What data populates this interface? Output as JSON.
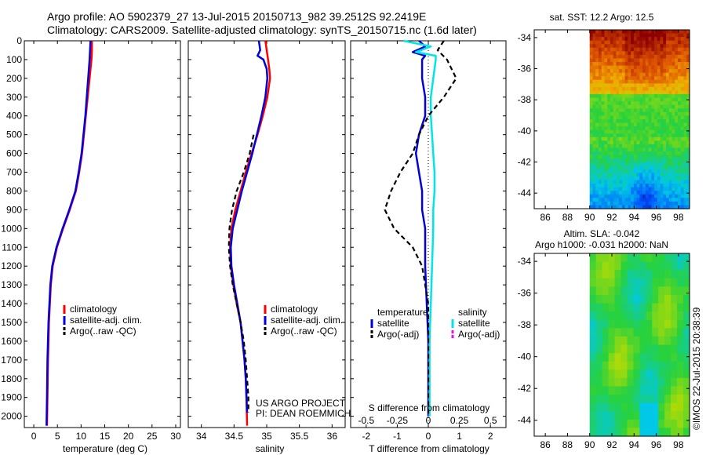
{
  "header": {
    "line1": "Argo profile: AO 5902379_27 13-Jul-2015 20150713_982 39.2512S 92.2419E",
    "line2": "Climatology: CARS2009. Satellite-adjusted climatology: synTS_20150715.nc (1.6d later)"
  },
  "colors": {
    "climatology": "#ff0000",
    "satellite": "#0000dd",
    "argo": "#000000",
    "sal_satellite": "#00e5e5",
    "sal_argo": "#ff00ff"
  },
  "depth_ticks": [
    0,
    100,
    200,
    300,
    400,
    500,
    600,
    700,
    800,
    900,
    1000,
    1100,
    1200,
    1300,
    1400,
    1500,
    1600,
    1700,
    1800,
    1900,
    2000
  ],
  "chart_data": [
    {
      "type": "line",
      "id": "temperature",
      "xlabel": "temperature (deg C)",
      "xlim": [
        -2,
        31
      ],
      "ylim": [
        2060,
        0
      ],
      "xticks": [
        0,
        5,
        10,
        15,
        20,
        25,
        30
      ],
      "legend": [
        "climatology",
        "satellite-adj. clim.",
        "Argo(..raw -QC)"
      ],
      "series": [
        {
          "name": "climatology",
          "depth": [
            0,
            50,
            100,
            200,
            300,
            400,
            500,
            600,
            700,
            800,
            900,
            1000,
            1100,
            1200,
            1300,
            1500,
            1700,
            1900,
            2050
          ],
          "values": [
            12.3,
            12.3,
            12.2,
            11.8,
            11.4,
            11.0,
            10.6,
            10.2,
            9.6,
            8.9,
            7.6,
            6.2,
            4.9,
            4.0,
            3.6,
            3.2,
            3.0,
            2.9,
            2.8
          ]
        },
        {
          "name": "satellite-adj. clim.",
          "depth": [
            0,
            50,
            100,
            200,
            300,
            400,
            500,
            600,
            700,
            800,
            900,
            1000,
            1100,
            1200,
            1300,
            1500,
            1700,
            1900,
            2050
          ],
          "values": [
            12.0,
            11.9,
            11.8,
            11.5,
            11.2,
            10.9,
            10.5,
            10.1,
            9.5,
            8.8,
            7.5,
            6.1,
            4.8,
            3.9,
            3.5,
            3.1,
            2.9,
            2.8,
            2.7
          ]
        }
      ]
    },
    {
      "type": "line",
      "id": "salinity",
      "xlabel": "salinity",
      "xlim": [
        33.8,
        36.2
      ],
      "ylim": [
        2060,
        0
      ],
      "xticks": [
        34,
        34.5,
        35,
        35.5,
        36
      ],
      "legend": [
        "climatology",
        "satellite-adj. clim.",
        "Argo(..raw -QC)"
      ],
      "annotation": [
        "US ARGO PROJECT",
        "PI: DEAN ROEMMICH"
      ],
      "series": [
        {
          "name": "climatology",
          "depth": [
            0,
            50,
            100,
            150,
            200,
            300,
            400,
            500,
            600,
            700,
            800,
            900,
            1000,
            1100,
            1200,
            1300,
            1400,
            1500,
            1600,
            1700,
            1800,
            1900,
            2050
          ],
          "values": [
            34.98,
            35.0,
            35.02,
            35.04,
            35.05,
            35.01,
            34.94,
            34.86,
            34.77,
            34.68,
            34.6,
            34.52,
            34.46,
            34.44,
            34.45,
            34.49,
            34.54,
            34.6,
            34.63,
            34.66,
            34.68,
            34.69,
            34.7
          ]
        },
        {
          "name": "satellite-adj. clim.",
          "depth": [
            0,
            50,
            80,
            100,
            150,
            200,
            300,
            400,
            500,
            600,
            700,
            800,
            900,
            1000,
            1100,
            1200,
            1300,
            1400,
            1500,
            1600,
            1700,
            1800,
            1900,
            1980
          ],
          "values": [
            34.88,
            34.9,
            34.86,
            34.95,
            35.0,
            35.01,
            34.98,
            34.92,
            34.85,
            34.78,
            34.7,
            34.62,
            34.55,
            34.48,
            34.45,
            34.46,
            34.5,
            34.55,
            34.6,
            34.63,
            34.66,
            34.68,
            34.69,
            34.7
          ]
        },
        {
          "name": "Argo(..raw -QC)",
          "depth": [
            500,
            600,
            700,
            800,
            900,
            1000,
            1100,
            1200,
            1300,
            1400,
            1500,
            1600,
            1700,
            1800,
            1900,
            1980
          ],
          "values": [
            34.8,
            34.74,
            34.65,
            34.54,
            34.47,
            34.43,
            34.42,
            34.44,
            34.48,
            34.54,
            34.6,
            34.65,
            34.68,
            34.7,
            34.72,
            34.72
          ]
        }
      ]
    },
    {
      "type": "line",
      "id": "difference",
      "xlabel": "T difference from climatology",
      "xlabel_top": "S difference from climatology",
      "xlim": [
        -2.5,
        2.5
      ],
      "ylim": [
        2060,
        0
      ],
      "xticks": [
        -2,
        -1,
        0,
        1,
        2
      ],
      "xticks_labels": [
        "-2",
        "-1",
        "0",
        "1",
        "2"
      ],
      "sticks": [
        -0.5,
        -0.25,
        0,
        0.25,
        0.5
      ],
      "sticks_labels": [
        "-0.5",
        "-0.25",
        "0",
        "0.25",
        "0.5"
      ],
      "legend_titles": [
        "temperature",
        "salinity"
      ],
      "legend": [
        "satellite",
        "Argo(-adj)",
        "satellite",
        "Argo(-adj)"
      ],
      "series": [
        {
          "name": "T satellite",
          "depth": [
            0,
            30,
            60,
            80,
            100,
            200,
            300,
            400,
            500,
            600,
            700,
            800,
            900,
            1000,
            1200,
            1400,
            1600,
            1800,
            2000
          ],
          "values": [
            -0.3,
            -0.1,
            -0.5,
            -0.1,
            -0.2,
            -0.2,
            -0.1,
            -0.1,
            -0.3,
            -0.4,
            -0.3,
            -0.2,
            -0.2,
            -0.1,
            -0.1,
            -0.05,
            0,
            0,
            0
          ]
        },
        {
          "name": "S satellite",
          "depth": [
            0,
            30,
            60,
            80,
            100,
            200,
            300,
            400,
            500,
            600,
            700,
            800,
            900,
            1000,
            1200,
            1400,
            1600,
            1800,
            2000
          ],
          "values": [
            -0.2,
            0.02,
            -0.1,
            0.06,
            0.06,
            0.04,
            0.02,
            0.02,
            0.03,
            0.04,
            0.05,
            0.05,
            0.04,
            0.04,
            0.03,
            0.02,
            0.01,
            0.01,
            0.01
          ]
        },
        {
          "name": "T Argo(-adj)",
          "depth": [
            0,
            50,
            100,
            200,
            300,
            400,
            500,
            600,
            700,
            800,
            900,
            1000,
            1100,
            1200,
            1300,
            1400,
            1500,
            1600,
            1700,
            1800,
            1900,
            2000
          ],
          "values": [
            0.5,
            0.3,
            0.6,
            0.9,
            0.5,
            0.0,
            -0.3,
            -0.5,
            -0.9,
            -1.2,
            -1.4,
            -1.1,
            -0.5,
            -0.2,
            -0.1,
            0,
            0,
            0,
            0,
            0,
            0,
            0
          ]
        }
      ]
    },
    {
      "type": "heatmap",
      "id": "sst",
      "title": "sat. SST: 12.2 Argo: 12.5",
      "xlim": [
        85,
        99
      ],
      "ylim": [
        -45,
        -33.5
      ],
      "xticks": [
        86,
        88,
        90,
        92,
        94,
        96,
        98
      ],
      "yticks": [
        -34,
        -36,
        -38,
        -40,
        -42,
        -44
      ],
      "data_xrange": [
        90,
        99
      ]
    },
    {
      "type": "heatmap",
      "id": "sla",
      "title": "Altim. SLA: -0.042",
      "subtitle": "Argo h1000: -0.031 h2000: NaN",
      "xlim": [
        85,
        99
      ],
      "ylim": [
        -45,
        -33.5
      ],
      "xticks": [
        86,
        88,
        90,
        92,
        94,
        96,
        98
      ],
      "yticks": [
        -34,
        -36,
        -38,
        -40,
        -42,
        -44
      ],
      "data_xrange": [
        90,
        99
      ]
    }
  ],
  "footer": {
    "credit": "©IMOS 22-Jul-2015 20:38:39"
  }
}
